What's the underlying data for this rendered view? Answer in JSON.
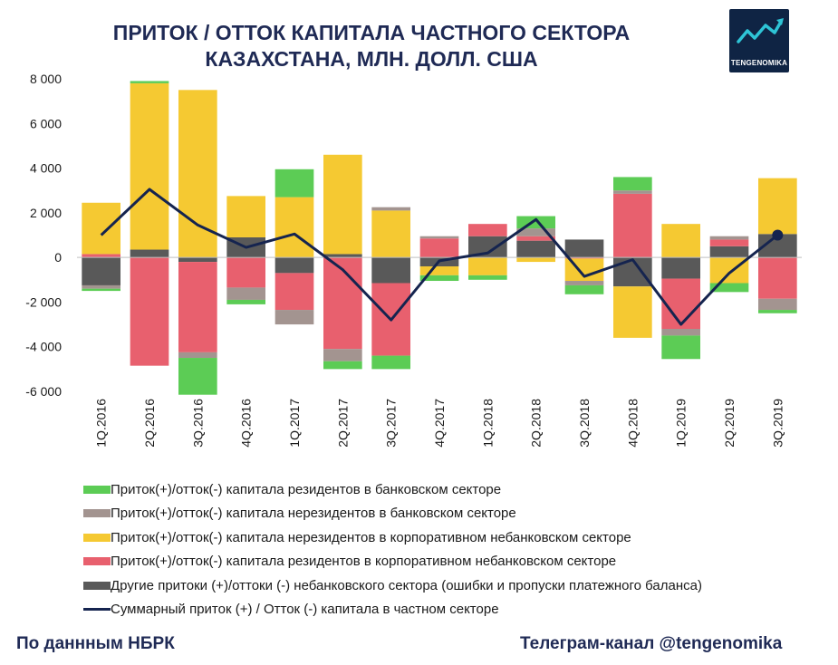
{
  "title_line1": "ПРИТОК / ОТТОК КАПИТАЛА ЧАСТНОГО СЕКТОРА",
  "title_line2": "КАЗАХСТАНА, МЛН. ДОЛЛ. США",
  "logo": {
    "text": "TENGENOMIKA",
    "icon": "trend-arrow-icon",
    "bg": "#0f2444",
    "accent": "#2ec4d6"
  },
  "footer": {
    "source": "По даннным НБРК",
    "channel": "Телеграм-канал @tengenomika"
  },
  "chart_data": {
    "type": "bar",
    "stacked": true,
    "categories": [
      "1Q.2016",
      "2Q.2016",
      "3Q.2016",
      "4Q.2016",
      "1Q.2017",
      "2Q.2017",
      "3Q.2017",
      "4Q.2017",
      "1Q.2018",
      "2Q.2018",
      "3Q.2018",
      "4Q.2018",
      "1Q.2019",
      "2Q.2019",
      "3Q.2019"
    ],
    "ylim": [
      -6000,
      8000
    ],
    "yticks": [
      8000,
      6000,
      4000,
      2000,
      0,
      -2000,
      -4000,
      -6000
    ],
    "ytick_labels": [
      "8 000",
      "6 000",
      "4 000",
      "2 000",
      "0",
      "-2 000",
      "-4 000",
      "-6 000"
    ],
    "grid": false,
    "legend_position": "bottom",
    "series": [
      {
        "name": "Другие притоки (+)/оттоки (-) небанковского сектора (ошибки и пропуски платежного баланса)",
        "color": "#595959",
        "values": [
          -1250,
          350,
          -200,
          900,
          -700,
          150,
          -1150,
          -400,
          950,
          750,
          800,
          -1300,
          -950,
          500,
          1050
        ]
      },
      {
        "name": "Приток(+)/отток(-) капитала резидентов в корпоративном небанковском секторе",
        "color": "#e8606e",
        "values": [
          150,
          -4850,
          -4050,
          -1350,
          -1650,
          -4100,
          -3250,
          850,
          550,
          200,
          -50,
          2850,
          -2250,
          300,
          -1850
        ]
      },
      {
        "name": "Приток(+)/отток(-) капитала нерезидентов в корпоративном небанковском секторе",
        "color": "#f5c932",
        "values": [
          2300,
          7450,
          7500,
          1850,
          2700,
          4450,
          2100,
          -400,
          -800,
          -200,
          -1000,
          -2300,
          1500,
          -1150,
          2500
        ]
      },
      {
        "name": "Приток(+)/отток(-) капитала нерезидентов в банковском секторе",
        "color": "#a39490",
        "values": [
          -150,
          0,
          -250,
          -550,
          -650,
          -550,
          150,
          100,
          0,
          350,
          -200,
          150,
          -300,
          150,
          -500
        ]
      },
      {
        "name": "Приток(+)/отток(-) капитала резидентов в банковском секторе",
        "color": "#5ccc55",
        "values": [
          -100,
          100,
          -1650,
          -200,
          1250,
          -350,
          -600,
          -250,
          -200,
          550,
          -400,
          600,
          -1050,
          -400,
          -150
        ]
      }
    ],
    "line": {
      "name": "Суммарный приток (+) / Отток (-) капитала в частном секторе",
      "color": "#15244f",
      "values": [
        1000,
        3050,
        1450,
        450,
        1050,
        -550,
        -2800,
        -150,
        200,
        1700,
        -850,
        -100,
        -3000,
        -700,
        1000
      ]
    },
    "legend_order": [
      4,
      3,
      2,
      1,
      0
    ]
  }
}
